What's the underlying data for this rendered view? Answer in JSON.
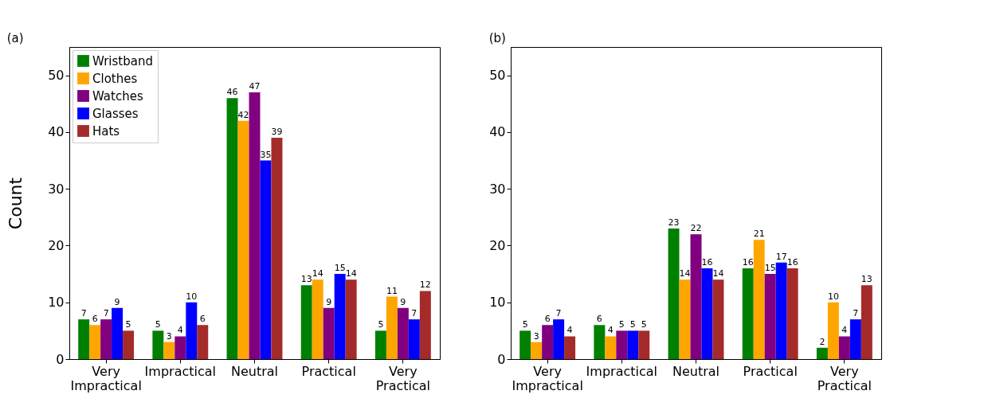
{
  "chart_data": [
    {
      "type": "bar",
      "title": "(a)",
      "ylabel": "Count",
      "categories": [
        "Very Impractical",
        "Impractical",
        "Neutral",
        "Practical",
        "Very Practical"
      ],
      "ylim": [
        0,
        55
      ],
      "yticks": [
        0,
        10,
        20,
        30,
        40,
        50
      ],
      "legend": "top left",
      "data_labels": true,
      "series": [
        {
          "name": "Wristband",
          "color": "#008000",
          "values": [
            7,
            5,
            46,
            13,
            5
          ]
        },
        {
          "name": "Clothes",
          "color": "#ffa500",
          "values": [
            6,
            3,
            42,
            14,
            11
          ]
        },
        {
          "name": "Watches",
          "color": "#800080",
          "values": [
            7,
            4,
            47,
            9,
            9
          ]
        },
        {
          "name": "Glasses",
          "color": "#0000ff",
          "values": [
            9,
            10,
            35,
            15,
            7
          ]
        },
        {
          "name": "Hats",
          "color": "#a52a2a",
          "values": [
            5,
            6,
            39,
            14,
            12
          ]
        }
      ]
    },
    {
      "type": "bar",
      "title": "(b)",
      "categories": [
        "Very Impractical",
        "Impractical",
        "Neutral",
        "Practical",
        "Very Practical"
      ],
      "ylim": [
        0,
        55
      ],
      "yticks": [
        0,
        10,
        20,
        30,
        40,
        50
      ],
      "legend": false,
      "data_labels": true,
      "series": [
        {
          "color": "#008000",
          "values": [
            5,
            6,
            23,
            16,
            2
          ]
        },
        {
          "color": "#ffa500",
          "values": [
            3,
            4,
            14,
            21,
            10
          ]
        },
        {
          "color": "#800080",
          "values": [
            6,
            5,
            22,
            15,
            4
          ]
        },
        {
          "color": "#0000ff",
          "values": [
            7,
            5,
            16,
            17,
            7
          ]
        },
        {
          "color": "#a52a2a",
          "values": [
            4,
            5,
            14,
            16,
            13
          ]
        }
      ]
    }
  ]
}
